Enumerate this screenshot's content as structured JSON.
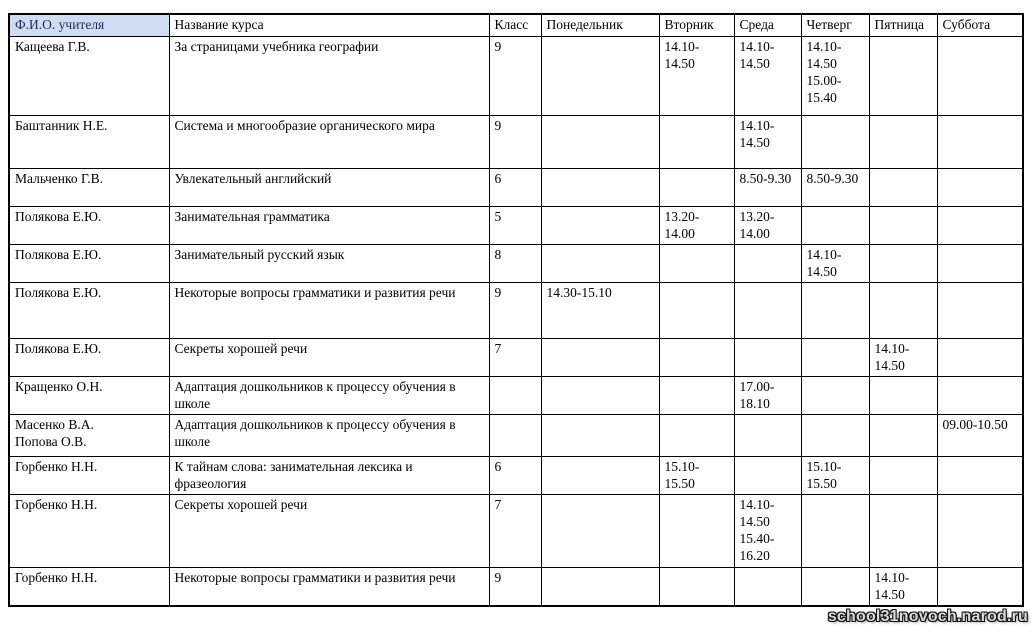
{
  "colors": {
    "header_highlight_bg": "#cdddf2",
    "header_highlight_text": "#1e2f55"
  },
  "watermark": {
    "text": "school31novoch.narod.ru"
  },
  "table": {
    "columns": [
      {
        "key": "teacher",
        "label": "Ф.И.О. учителя"
      },
      {
        "key": "course",
        "label": "Название курса"
      },
      {
        "key": "grade",
        "label": "Класс"
      },
      {
        "key": "mon",
        "label": "Понедельник"
      },
      {
        "key": "tue",
        "label": "Вторник"
      },
      {
        "key": "wed",
        "label": "Среда"
      },
      {
        "key": "thu",
        "label": "Четверг"
      },
      {
        "key": "fri",
        "label": "Пятница"
      },
      {
        "key": "sat",
        "label": "Суббота"
      }
    ],
    "rows": [
      {
        "teacher": "Кащеева Г.В.",
        "course": "За страницами учебника географии",
        "grade": "9",
        "mon": "",
        "tue": "14.10-14.50",
        "wed": "14.10-14.50",
        "thu": "14.10-14.50\n15.00-15.40",
        "fri": "",
        "sat": ""
      },
      {
        "teacher": "Баштанник Н.Е.",
        "course": "Система и многообразие органического мира",
        "grade": "9",
        "mon": "",
        "tue": "",
        "wed": "14.10-14.50",
        "thu": "",
        "fri": "",
        "sat": ""
      },
      {
        "teacher": "Мальченко Г.В.",
        "course": "Увлекательный английский",
        "grade": "6",
        "mon": "",
        "tue": "",
        "wed": "8.50-9.30",
        "thu": "8.50-9.30",
        "fri": "",
        "sat": ""
      },
      {
        "teacher": "Полякова Е.Ю.",
        "course": "Занимательная грамматика",
        "grade": "5",
        "mon": "",
        "tue": "13.20-14.00",
        "wed": "13.20-14.00",
        "thu": "",
        "fri": "",
        "sat": ""
      },
      {
        "teacher": "Полякова Е.Ю.",
        "course": "Занимательный русский язык",
        "grade": "8",
        "mon": "",
        "tue": "",
        "wed": "",
        "thu": "14.10-14.50",
        "fri": "",
        "sat": ""
      },
      {
        "teacher": "Полякова Е.Ю.",
        "course": "Некоторые вопросы грамматики и развития речи",
        "grade": "9",
        "mon": "14.30-15.10",
        "tue": "",
        "wed": "",
        "thu": "",
        "fri": "",
        "sat": ""
      },
      {
        "teacher": "Полякова Е.Ю.",
        "course": "Секреты хорошей речи",
        "grade": "7",
        "mon": "",
        "tue": "",
        "wed": "",
        "thu": "",
        "fri": "14.10-14.50",
        "sat": ""
      },
      {
        "teacher": "Кращенко О.Н.",
        "course": "Адаптация  дошкольников к процессу обучения в школе",
        "grade": "",
        "mon": "",
        "tue": "",
        "wed": "17.00-18.10",
        "thu": "",
        "fri": "",
        "sat": ""
      },
      {
        "teacher": "Масенко В.А.\nПопова О.В.",
        "course": "Адаптация дошкольников к процессу обучения в школе",
        "grade": "",
        "mon": "",
        "tue": "",
        "wed": "",
        "thu": "",
        "fri": "",
        "sat": "09.00-10.50"
      },
      {
        "teacher": "Горбенко Н.Н.",
        "course": "К тайнам слова: занимательная лексика и фразеология",
        "grade": "6",
        "mon": "",
        "tue": "15.10-15.50",
        "wed": "",
        "thu": "15.10-15.50",
        "fri": "",
        "sat": ""
      },
      {
        "teacher": "Горбенко Н.Н.",
        "course": "Секреты хорошей речи",
        "grade": "7",
        "mon": "",
        "tue": "",
        "wed": "14.10-14.50\n15.40-16.20",
        "thu": "",
        "fri": "",
        "sat": ""
      },
      {
        "teacher": "Горбенко Н.Н.",
        "course": "Некоторые вопросы грамматики и развития речи",
        "grade": "9",
        "mon": "",
        "tue": "",
        "wed": "",
        "thu": "",
        "fri": "14.10-14.50",
        "sat": ""
      }
    ]
  }
}
